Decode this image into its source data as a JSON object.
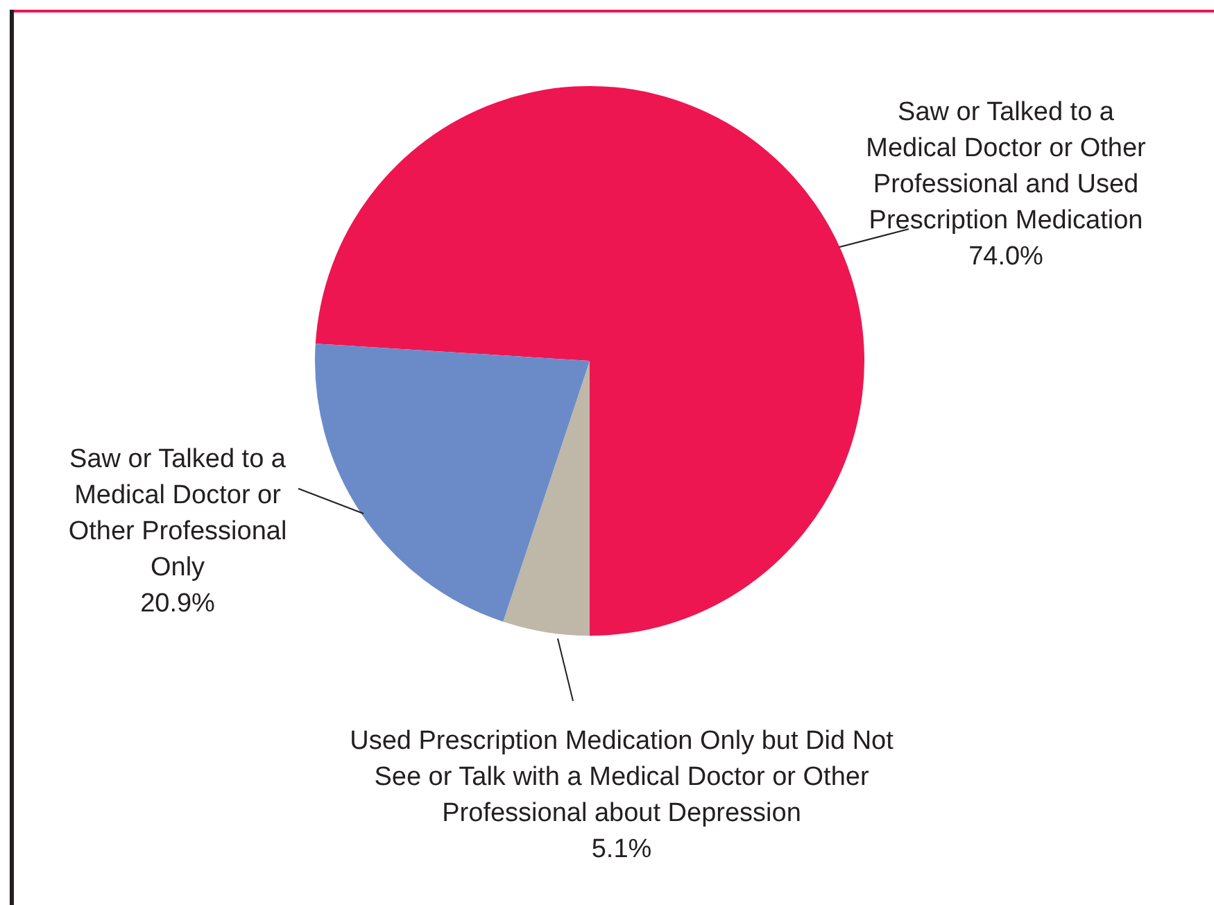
{
  "chart_data": {
    "type": "pie",
    "categories": [
      "Saw or Talked to a Medical Doctor or Other Professional and Used Prescription Medication",
      "Used Prescription Medication Only but Did Not See or Talk with a Medical Doctor or Other Professional about Depression",
      "Saw or Talked to a Medical Doctor or Other Professional Only"
    ],
    "values": [
      74.0,
      5.1,
      20.9
    ],
    "value_labels": [
      "74.0%",
      "5.1%",
      "20.9%"
    ],
    "colors": [
      "#ed1651",
      "#bfb8a8",
      "#6b8bc8"
    ]
  }
}
